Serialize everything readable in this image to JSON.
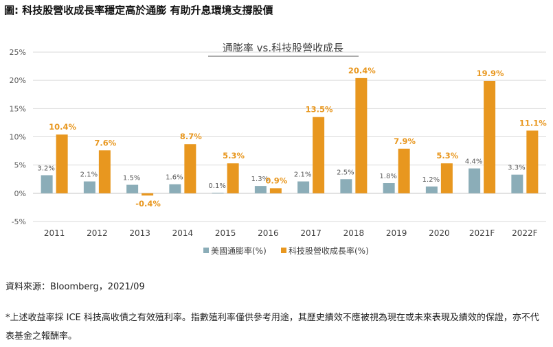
{
  "page_title": "圖: 科技股營收成長率穩定高於通膨  有助升息環境支撐股價",
  "source": "資料來源：Bloomberg，2021/09",
  "footnote": "*上述收益率採 ICE 科技高收債之有效殖利率。指數殖利率僅供參考用途，其歷史績效不應被視為現在或未來表現及績效的保證，亦不代表基金之報酬率。",
  "colors": {
    "inflation": "#8badb8",
    "revenue": "#e8971f",
    "inflation_label": "#595959",
    "revenue_label": "#e8971f",
    "grid": "#d9d9d9",
    "axis_text": "#595959"
  },
  "chart_data": {
    "type": "bar",
    "title": "通膨率 vs.科技股營收成長",
    "xlabel": "",
    "ylabel": "",
    "categories": [
      "2011",
      "2012",
      "2013",
      "2014",
      "2015",
      "2016",
      "2017",
      "2018",
      "2019",
      "2020",
      "2021F",
      "2022F"
    ],
    "series": [
      {
        "name": "美國通膨率(%)",
        "values": [
          3.2,
          2.1,
          1.5,
          1.6,
          0.1,
          1.3,
          2.1,
          2.5,
          1.8,
          1.2,
          4.4,
          3.3
        ],
        "labels": [
          "3.2%",
          "2.1%",
          "1.5%",
          "1.6%",
          "0.1%",
          "1.3%",
          "2.1%",
          "2.5%",
          "1.8%",
          "1.2%",
          "4.4%",
          "3.3%"
        ]
      },
      {
        "name": "科技股營收成長率(%)",
        "values": [
          10.4,
          7.6,
          -0.4,
          8.7,
          5.3,
          0.9,
          13.5,
          20.4,
          7.9,
          5.3,
          19.9,
          11.1
        ],
        "labels": [
          "10.4%",
          "7.6%",
          "-0.4%",
          "8.7%",
          "5.3%",
          "0.9%",
          "13.5%",
          "20.4%",
          "7.9%",
          "5.3%",
          "19.9%",
          "11.1%"
        ]
      }
    ],
    "yticks": [
      -5,
      0,
      5,
      10,
      15,
      20,
      25
    ],
    "ytick_labels": [
      "-5%",
      "0%",
      "5%",
      "10%",
      "15%",
      "20%",
      "25%"
    ],
    "ylim": [
      -5,
      25
    ],
    "grid": true,
    "legend_position": "bottom"
  }
}
